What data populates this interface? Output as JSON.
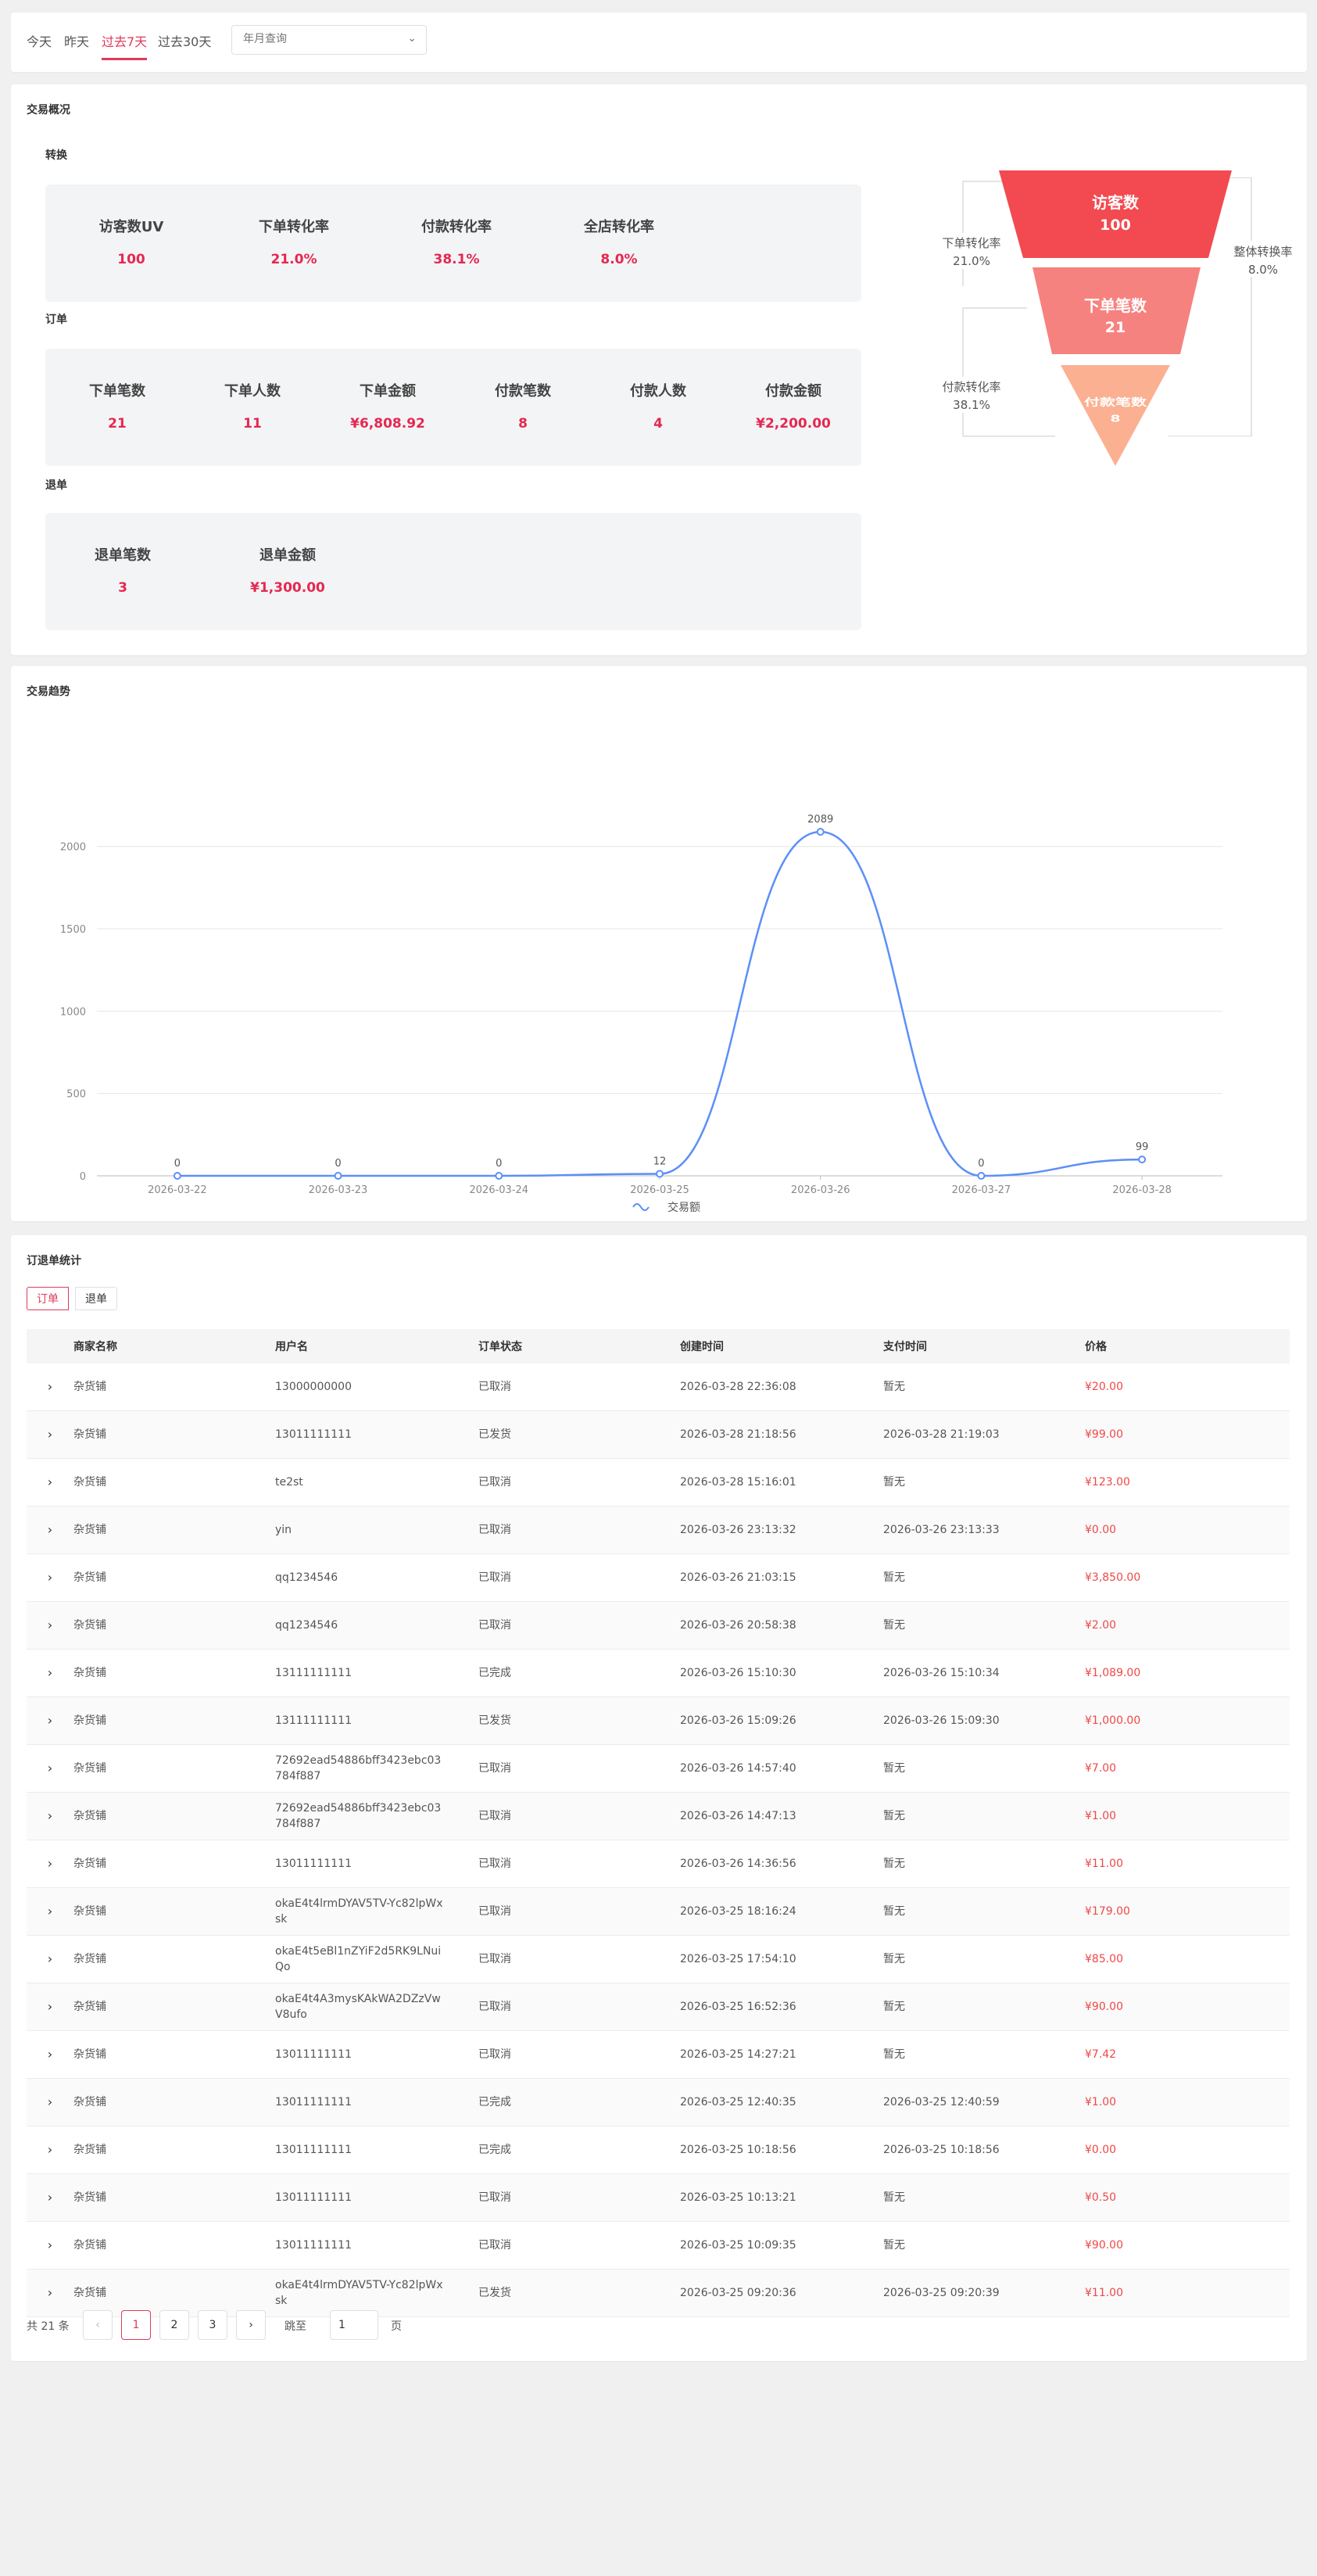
{
  "filter": {
    "tabs": [
      "今天",
      "昨天",
      "过去7天",
      "过去30天"
    ],
    "active_tab": 2,
    "date_placeholder": "年月查询"
  },
  "overview": {
    "title": "交易概况",
    "conversion": {
      "label": "转换",
      "items": [
        {
          "label": "访客数UV",
          "value": "100"
        },
        {
          "label": "下单转化率",
          "value": "21.0%"
        },
        {
          "label": "付款转化率",
          "value": "38.1%"
        },
        {
          "label": "全店转化率",
          "value": "8.0%"
        }
      ]
    },
    "orders": {
      "label": "订单",
      "items": [
        {
          "label": "下单笔数",
          "value": "21"
        },
        {
          "label": "下单人数",
          "value": "11"
        },
        {
          "label": "下单金额",
          "value": "¥6,808.92"
        },
        {
          "label": "付款笔数",
          "value": "8"
        },
        {
          "label": "付款人数",
          "value": "4"
        },
        {
          "label": "付款金额",
          "value": "¥2,200.00"
        }
      ]
    },
    "refunds": {
      "label": "退单",
      "items": [
        {
          "label": "退单笔数",
          "value": "3"
        },
        {
          "label": "退单金额",
          "value": "¥1,300.00"
        }
      ]
    },
    "funnel": {
      "stages": [
        {
          "label": "访客数",
          "value": "100",
          "color": "#f24a50"
        },
        {
          "label": "下单笔数",
          "value": "21",
          "color": "#f6827f"
        },
        {
          "label": "付款笔数",
          "value": "8",
          "color": "#fbb092"
        }
      ],
      "order_rate": {
        "label": "下单转化率",
        "value": "21.0%"
      },
      "pay_rate": {
        "label": "付款转化率",
        "value": "38.1%"
      },
      "overall_rate": {
        "label": "整体转换率",
        "value": "8.0%"
      }
    }
  },
  "trend": {
    "title": "交易趋势"
  },
  "chart_data": {
    "type": "line",
    "x": [
      "2026-03-22",
      "2026-03-23",
      "2026-03-24",
      "2026-03-25",
      "2026-03-26",
      "2026-03-27",
      "2026-03-28"
    ],
    "series": [
      {
        "name": "交易额",
        "values": [
          0,
          0,
          0,
          12,
          2089,
          0,
          99
        ],
        "color": "#5b8ff9"
      }
    ],
    "yticks": [
      0,
      500,
      1000,
      1500,
      2000
    ],
    "ylim": [
      0,
      2200
    ],
    "smooth": true,
    "grid": true,
    "legend": "bottom-center"
  },
  "orders": {
    "title": "订退单统计",
    "sub_tabs": [
      "订单",
      "退单"
    ],
    "columns": [
      "商家名称",
      "用户名",
      "订单状态",
      "创建时间",
      "支付时间",
      "价格"
    ],
    "rows": [
      [
        "杂货铺",
        "13000000000",
        "已取消",
        "2026-03-28 22:36:08",
        "暂无",
        "¥20.00"
      ],
      [
        "杂货铺",
        "13011111111",
        "已发货",
        "2026-03-28 21:18:56",
        "2026-03-28 21:19:03",
        "¥99.00"
      ],
      [
        "杂货铺",
        "te2st",
        "已取消",
        "2026-03-28 15:16:01",
        "暂无",
        "¥123.00"
      ],
      [
        "杂货铺",
        "yin",
        "已取消",
        "2026-03-26 23:13:32",
        "2026-03-26 23:13:33",
        "¥0.00"
      ],
      [
        "杂货铺",
        "qq1234546",
        "已取消",
        "2026-03-26 21:03:15",
        "暂无",
        "¥3,850.00"
      ],
      [
        "杂货铺",
        "qq1234546",
        "已取消",
        "2026-03-26 20:58:38",
        "暂无",
        "¥2.00"
      ],
      [
        "杂货铺",
        "13111111111",
        "已完成",
        "2026-03-26 15:10:30",
        "2026-03-26 15:10:34",
        "¥1,089.00"
      ],
      [
        "杂货铺",
        "13111111111",
        "已发货",
        "2026-03-26 15:09:26",
        "2026-03-26 15:09:30",
        "¥1,000.00"
      ],
      [
        "杂货铺",
        "72692ead54886bff3423ebc03784f887",
        "已取消",
        "2026-03-26 14:57:40",
        "暂无",
        "¥7.00"
      ],
      [
        "杂货铺",
        "72692ead54886bff3423ebc03784f887",
        "已取消",
        "2026-03-26 14:47:13",
        "暂无",
        "¥1.00"
      ],
      [
        "杂货铺",
        "13011111111",
        "已取消",
        "2026-03-26 14:36:56",
        "暂无",
        "¥11.00"
      ],
      [
        "杂货铺",
        "okaE4t4lrmDYAV5TV-Yc82lpWxsk",
        "已取消",
        "2026-03-25 18:16:24",
        "暂无",
        "¥179.00"
      ],
      [
        "杂货铺",
        "okaE4t5eBl1nZYiF2d5RK9LNuiQo",
        "已取消",
        "2026-03-25 17:54:10",
        "暂无",
        "¥85.00"
      ],
      [
        "杂货铺",
        "okaE4t4A3mysKAkWA2DZzVwV8ufo",
        "已取消",
        "2026-03-25 16:52:36",
        "暂无",
        "¥90.00"
      ],
      [
        "杂货铺",
        "13011111111",
        "已取消",
        "2026-03-25 14:27:21",
        "暂无",
        "¥7.42"
      ],
      [
        "杂货铺",
        "13011111111",
        "已完成",
        "2026-03-25 12:40:35",
        "2026-03-25 12:40:59",
        "¥1.00"
      ],
      [
        "杂货铺",
        "13011111111",
        "已完成",
        "2026-03-25 10:18:56",
        "2026-03-25 10:18:56",
        "¥0.00"
      ],
      [
        "杂货铺",
        "13011111111",
        "已取消",
        "2026-03-25 10:13:21",
        "暂无",
        "¥0.50"
      ],
      [
        "杂货铺",
        "13011111111",
        "已取消",
        "2026-03-25 10:09:35",
        "暂无",
        "¥90.00"
      ],
      [
        "杂货铺",
        "okaE4t4lrmDYAV5TV-Yc82lpWxsk",
        "已发货",
        "2026-03-25 09:20:36",
        "2026-03-25 09:20:39",
        "¥11.00"
      ]
    ],
    "pagination": {
      "total_text": "共 21 条",
      "pages": [
        "1",
        "2",
        "3"
      ],
      "current": "1",
      "jump_label": "跳至",
      "jump_value": "1",
      "page_suffix": "页"
    }
  }
}
